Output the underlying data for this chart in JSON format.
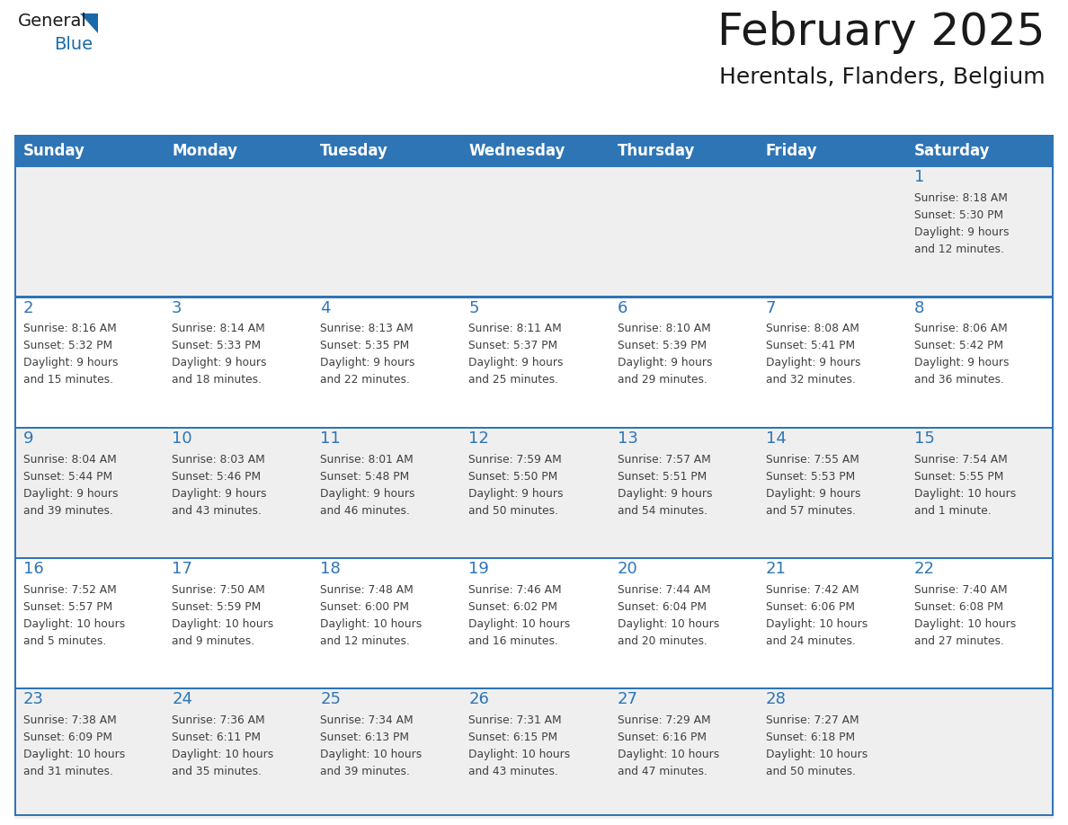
{
  "title": "February 2025",
  "subtitle": "Herentals, Flanders, Belgium",
  "days_of_week": [
    "Sunday",
    "Monday",
    "Tuesday",
    "Wednesday",
    "Thursday",
    "Friday",
    "Saturday"
  ],
  "header_bg": "#2E75B6",
  "header_text_color": "#FFFFFF",
  "cell_bg_odd": "#EFEFEF",
  "cell_bg_even": "#FFFFFF",
  "separator_color": "#2E75B6",
  "text_color": "#404040",
  "day_number_color": "#2E75B6",
  "calendar_data": [
    [
      {
        "day": null,
        "info": null
      },
      {
        "day": null,
        "info": null
      },
      {
        "day": null,
        "info": null
      },
      {
        "day": null,
        "info": null
      },
      {
        "day": null,
        "info": null
      },
      {
        "day": null,
        "info": null
      },
      {
        "day": 1,
        "info": "Sunrise: 8:18 AM\nSunset: 5:30 PM\nDaylight: 9 hours\nand 12 minutes."
      }
    ],
    [
      {
        "day": 2,
        "info": "Sunrise: 8:16 AM\nSunset: 5:32 PM\nDaylight: 9 hours\nand 15 minutes."
      },
      {
        "day": 3,
        "info": "Sunrise: 8:14 AM\nSunset: 5:33 PM\nDaylight: 9 hours\nand 18 minutes."
      },
      {
        "day": 4,
        "info": "Sunrise: 8:13 AM\nSunset: 5:35 PM\nDaylight: 9 hours\nand 22 minutes."
      },
      {
        "day": 5,
        "info": "Sunrise: 8:11 AM\nSunset: 5:37 PM\nDaylight: 9 hours\nand 25 minutes."
      },
      {
        "day": 6,
        "info": "Sunrise: 8:10 AM\nSunset: 5:39 PM\nDaylight: 9 hours\nand 29 minutes."
      },
      {
        "day": 7,
        "info": "Sunrise: 8:08 AM\nSunset: 5:41 PM\nDaylight: 9 hours\nand 32 minutes."
      },
      {
        "day": 8,
        "info": "Sunrise: 8:06 AM\nSunset: 5:42 PM\nDaylight: 9 hours\nand 36 minutes."
      }
    ],
    [
      {
        "day": 9,
        "info": "Sunrise: 8:04 AM\nSunset: 5:44 PM\nDaylight: 9 hours\nand 39 minutes."
      },
      {
        "day": 10,
        "info": "Sunrise: 8:03 AM\nSunset: 5:46 PM\nDaylight: 9 hours\nand 43 minutes."
      },
      {
        "day": 11,
        "info": "Sunrise: 8:01 AM\nSunset: 5:48 PM\nDaylight: 9 hours\nand 46 minutes."
      },
      {
        "day": 12,
        "info": "Sunrise: 7:59 AM\nSunset: 5:50 PM\nDaylight: 9 hours\nand 50 minutes."
      },
      {
        "day": 13,
        "info": "Sunrise: 7:57 AM\nSunset: 5:51 PM\nDaylight: 9 hours\nand 54 minutes."
      },
      {
        "day": 14,
        "info": "Sunrise: 7:55 AM\nSunset: 5:53 PM\nDaylight: 9 hours\nand 57 minutes."
      },
      {
        "day": 15,
        "info": "Sunrise: 7:54 AM\nSunset: 5:55 PM\nDaylight: 10 hours\nand 1 minute."
      }
    ],
    [
      {
        "day": 16,
        "info": "Sunrise: 7:52 AM\nSunset: 5:57 PM\nDaylight: 10 hours\nand 5 minutes."
      },
      {
        "day": 17,
        "info": "Sunrise: 7:50 AM\nSunset: 5:59 PM\nDaylight: 10 hours\nand 9 minutes."
      },
      {
        "day": 18,
        "info": "Sunrise: 7:48 AM\nSunset: 6:00 PM\nDaylight: 10 hours\nand 12 minutes."
      },
      {
        "day": 19,
        "info": "Sunrise: 7:46 AM\nSunset: 6:02 PM\nDaylight: 10 hours\nand 16 minutes."
      },
      {
        "day": 20,
        "info": "Sunrise: 7:44 AM\nSunset: 6:04 PM\nDaylight: 10 hours\nand 20 minutes."
      },
      {
        "day": 21,
        "info": "Sunrise: 7:42 AM\nSunset: 6:06 PM\nDaylight: 10 hours\nand 24 minutes."
      },
      {
        "day": 22,
        "info": "Sunrise: 7:40 AM\nSunset: 6:08 PM\nDaylight: 10 hours\nand 27 minutes."
      }
    ],
    [
      {
        "day": 23,
        "info": "Sunrise: 7:38 AM\nSunset: 6:09 PM\nDaylight: 10 hours\nand 31 minutes."
      },
      {
        "day": 24,
        "info": "Sunrise: 7:36 AM\nSunset: 6:11 PM\nDaylight: 10 hours\nand 35 minutes."
      },
      {
        "day": 25,
        "info": "Sunrise: 7:34 AM\nSunset: 6:13 PM\nDaylight: 10 hours\nand 39 minutes."
      },
      {
        "day": 26,
        "info": "Sunrise: 7:31 AM\nSunset: 6:15 PM\nDaylight: 10 hours\nand 43 minutes."
      },
      {
        "day": 27,
        "info": "Sunrise: 7:29 AM\nSunset: 6:16 PM\nDaylight: 10 hours\nand 47 minutes."
      },
      {
        "day": 28,
        "info": "Sunrise: 7:27 AM\nSunset: 6:18 PM\nDaylight: 10 hours\nand 50 minutes."
      },
      {
        "day": null,
        "info": null
      }
    ]
  ],
  "logo_color_general": "#1a1a1a",
  "logo_color_blue": "#1a6aaa",
  "logo_triangle_color": "#1a6aaa",
  "fig_width": 11.88,
  "fig_height": 9.18,
  "title_fontsize": 36,
  "subtitle_fontsize": 18,
  "header_fontsize": 12,
  "day_num_fontsize": 13,
  "info_fontsize": 8.8
}
